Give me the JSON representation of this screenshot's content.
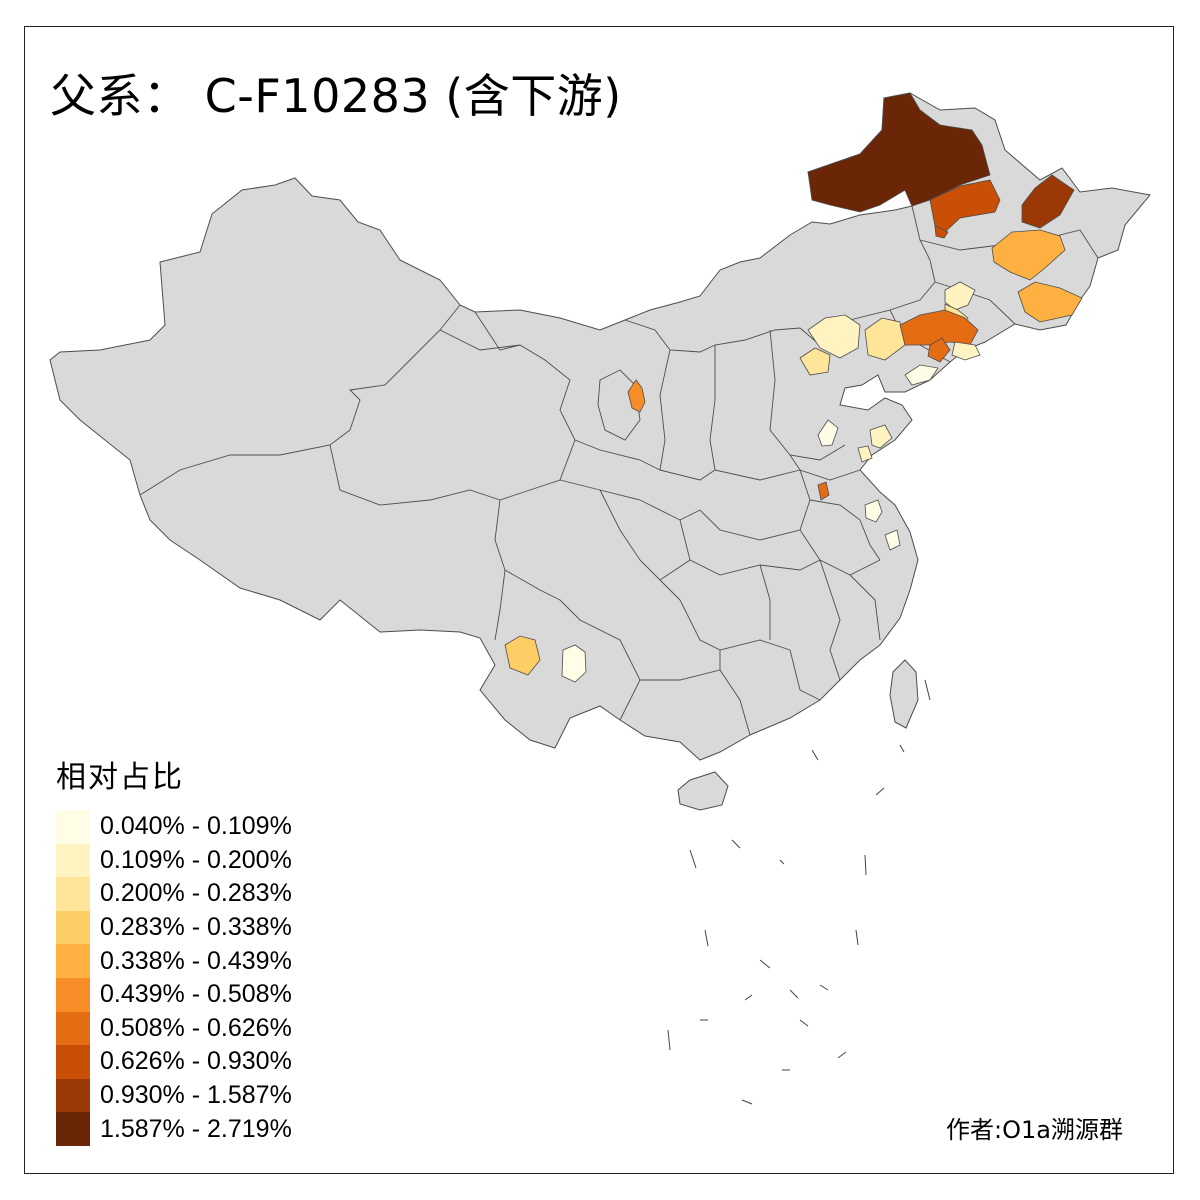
{
  "title": "父系： C-F10283 (含下游)",
  "legend": {
    "title": "相对占比",
    "classes": [
      {
        "label": "0.040% - 0.109%",
        "color": "#fffde6"
      },
      {
        "label": "0.109% - 0.200%",
        "color": "#fff3c2"
      },
      {
        "label": "0.200% - 0.283%",
        "color": "#fee59a"
      },
      {
        "label": "0.283% - 0.338%",
        "color": "#fece66"
      },
      {
        "label": "0.338% - 0.439%",
        "color": "#feb040"
      },
      {
        "label": "0.439% - 0.508%",
        "color": "#f68d27"
      },
      {
        "label": "0.508% - 0.626%",
        "color": "#e46c12"
      },
      {
        "label": "0.626% - 0.930%",
        "color": "#c84f05"
      },
      {
        "label": "0.930% - 1.587%",
        "color": "#9b3806"
      },
      {
        "label": "1.587% - 2.719%",
        "color": "#6a2607"
      }
    ]
  },
  "credit": "作者:O1a溯源群",
  "base_fill": "#d9d9d9",
  "border_color": "#4d4d4d"
}
